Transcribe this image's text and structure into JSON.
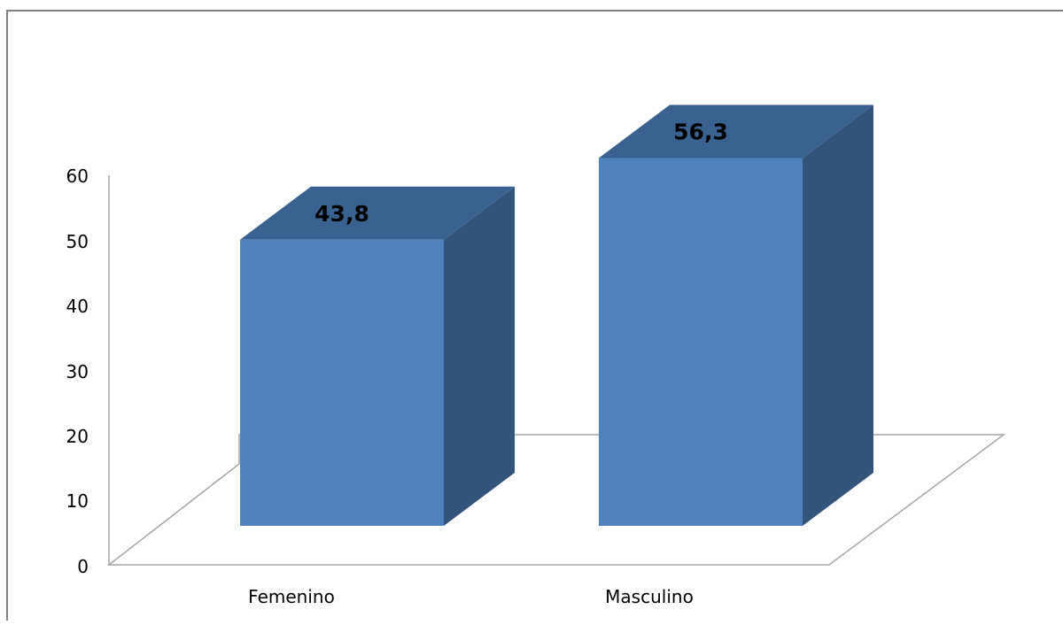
{
  "chart_data": {
    "type": "bar",
    "style": "3d-column",
    "categories": [
      "Femenino",
      "Masculino"
    ],
    "values": [
      43.8,
      56.3
    ],
    "data_labels": [
      "43,8",
      "56,3"
    ],
    "y_ticks": [
      "0",
      "10",
      "20",
      "30",
      "40",
      "50",
      "60"
    ],
    "ylim": [
      0,
      60
    ],
    "title": "",
    "xlabel": "",
    "ylabel": "",
    "grid": false,
    "legend": "none",
    "colors": {
      "bar_front": "#4F81BD",
      "bar_top": "#3A6291",
      "bar_side": "#33547A",
      "floor_line": "#A6A6A6",
      "axis_line": "#A6A6A6",
      "frame": "#7F7F7F",
      "text": "#000000"
    }
  }
}
